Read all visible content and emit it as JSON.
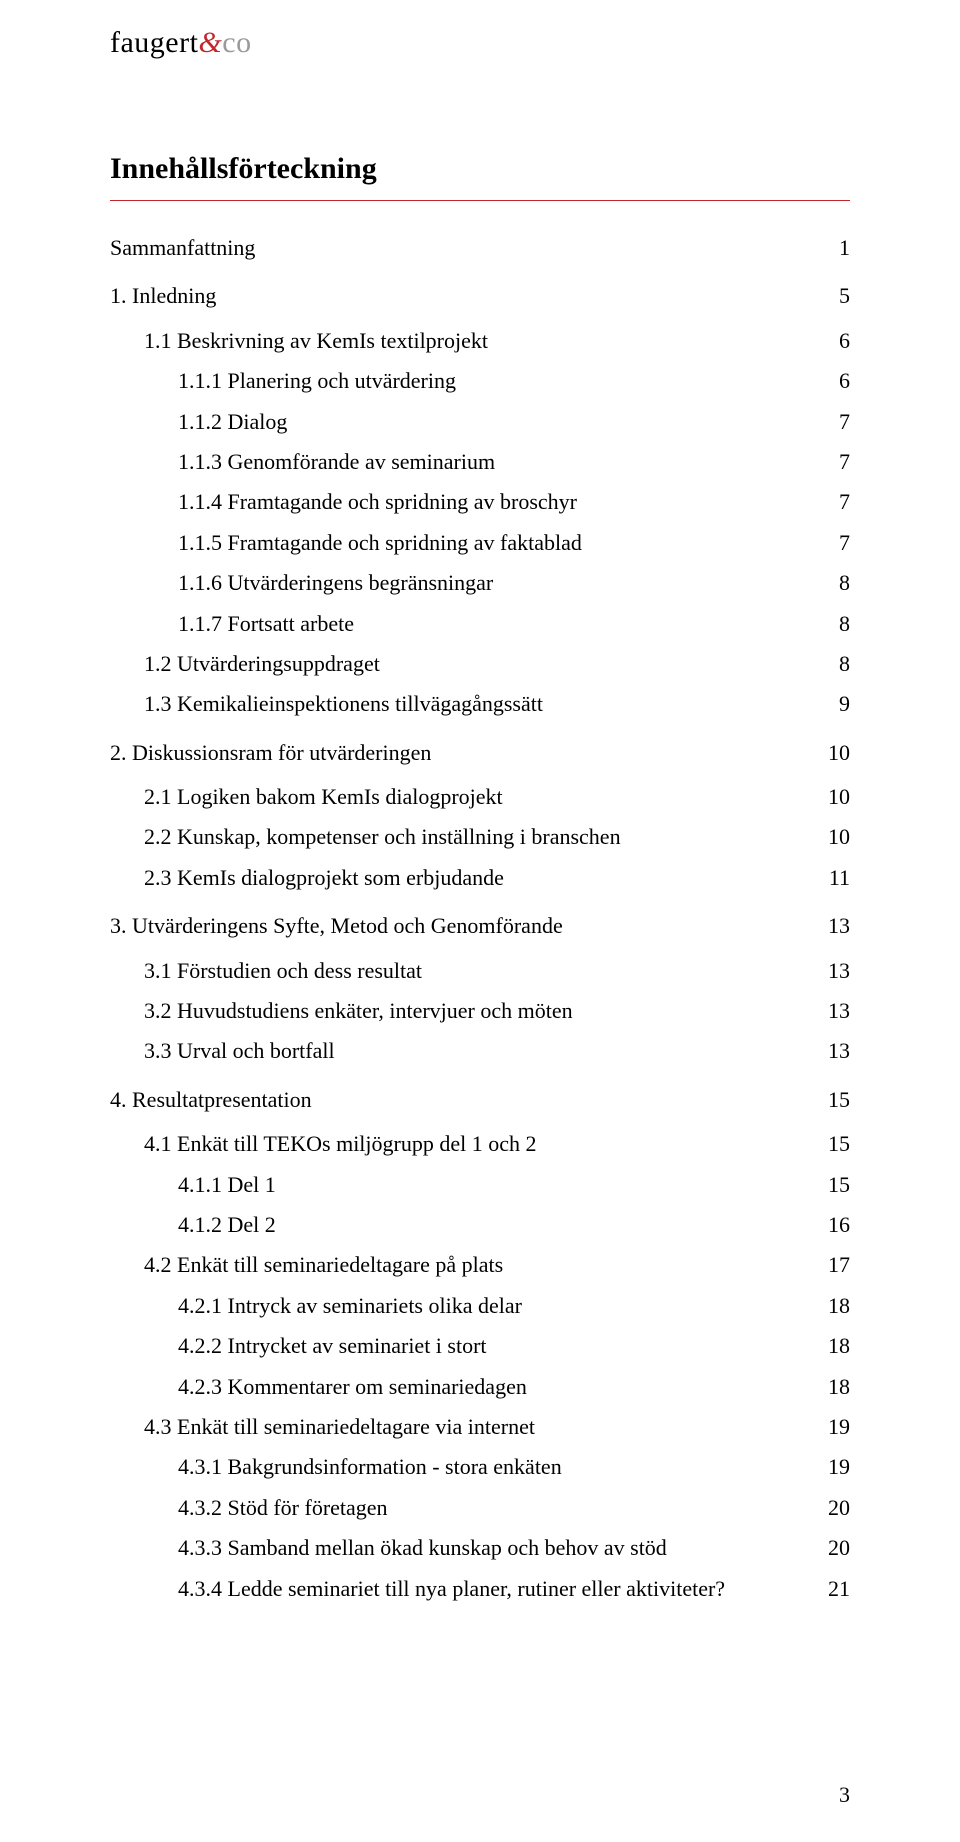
{
  "logo": {
    "part1": "faugert",
    "amp": "&",
    "part2": "co"
  },
  "title": "Innehållsförteckning",
  "page_number": "3",
  "toc": [
    {
      "level": 0,
      "label": "Sammanfattning",
      "page": "1",
      "space": "big"
    },
    {
      "level": 0,
      "label": "1. Inledning",
      "page": "5",
      "space": "big"
    },
    {
      "level": 1,
      "label": "1.1 Beskrivning av KemIs textilprojekt",
      "page": "6",
      "space": "med"
    },
    {
      "level": 2,
      "label": "1.1.1 Planering och utvärdering",
      "page": "6",
      "space": "sml"
    },
    {
      "level": 2,
      "label": "1.1.2 Dialog",
      "page": "7",
      "space": "sml"
    },
    {
      "level": 2,
      "label": "1.1.3 Genomförande av seminarium",
      "page": "7",
      "space": "sml"
    },
    {
      "level": 2,
      "label": "1.1.4 Framtagande och spridning av broschyr",
      "page": "7",
      "space": "sml"
    },
    {
      "level": 2,
      "label": "1.1.5 Framtagande och spridning av faktablad",
      "page": "7",
      "space": "sml"
    },
    {
      "level": 2,
      "label": "1.1.6 Utvärderingens begränsningar",
      "page": "8",
      "space": "sml"
    },
    {
      "level": 2,
      "label": "1.1.7 Fortsatt arbete",
      "page": "8",
      "space": "sml"
    },
    {
      "level": 1,
      "label": "1.2 Utvärderingsuppdraget",
      "page": "8",
      "space": "sml"
    },
    {
      "level": 1,
      "label": "1.3 Kemikalieinspektionens tillvägagångssätt",
      "page": "9",
      "space": "sml"
    },
    {
      "level": 0,
      "label": "2. Diskussionsram för utvärderingen",
      "page": "10",
      "space": "big"
    },
    {
      "level": 1,
      "label": "2.1 Logiken bakom KemIs dialogprojekt",
      "page": "10",
      "space": "med"
    },
    {
      "level": 1,
      "label": "2.2 Kunskap, kompetenser och inställning i branschen",
      "page": "10",
      "space": "sml"
    },
    {
      "level": 1,
      "label": "2.3 KemIs dialogprojekt som erbjudande",
      "page": "11",
      "space": "sml"
    },
    {
      "level": 0,
      "label": "3. Utvärderingens Syfte, Metod och Genomförande",
      "page": "13",
      "space": "big"
    },
    {
      "level": 1,
      "label": "3.1 Förstudien och dess resultat",
      "page": "13",
      "space": "med"
    },
    {
      "level": 1,
      "label": "3.2 Huvudstudiens enkäter, intervjuer och möten",
      "page": "13",
      "space": "sml"
    },
    {
      "level": 1,
      "label": "3.3 Urval och bortfall",
      "page": "13",
      "space": "sml"
    },
    {
      "level": 0,
      "label": "4. Resultatpresentation",
      "page": "15",
      "space": "big"
    },
    {
      "level": 1,
      "label": "4.1 Enkät till TEKOs miljögrupp del 1 och 2",
      "page": "15",
      "space": "med"
    },
    {
      "level": 2,
      "label": "4.1.1 Del 1",
      "page": "15",
      "space": "sml"
    },
    {
      "level": 2,
      "label": "4.1.2 Del 2",
      "page": "16",
      "space": "sml"
    },
    {
      "level": 1,
      "label": "4.2 Enkät till seminariedeltagare på plats",
      "page": "17",
      "space": "sml"
    },
    {
      "level": 2,
      "label": "4.2.1 Intryck av seminariets olika delar",
      "page": "18",
      "space": "sml"
    },
    {
      "level": 2,
      "label": "4.2.2 Intrycket av seminariet i stort",
      "page": "18",
      "space": "sml"
    },
    {
      "level": 2,
      "label": "4.2.3 Kommentarer om seminariedagen",
      "page": "18",
      "space": "sml"
    },
    {
      "level": 1,
      "label": "4.3 Enkät till seminariedeltagare via internet",
      "page": "19",
      "space": "sml"
    },
    {
      "level": 2,
      "label": "4.3.1 Bakgrundsinformation - stora enkäten",
      "page": "19",
      "space": "sml"
    },
    {
      "level": 2,
      "label": "4.3.2 Stöd för företagen",
      "page": "20",
      "space": "sml"
    },
    {
      "level": 2,
      "label": "4.3.3 Samband mellan ökad kunskap och behov av stöd",
      "page": "20",
      "space": "sml"
    },
    {
      "level": 2,
      "label": "4.3.4 Ledde seminariet till nya planer, rutiner eller aktiviteter?",
      "page": "21",
      "space": "sml"
    }
  ]
}
